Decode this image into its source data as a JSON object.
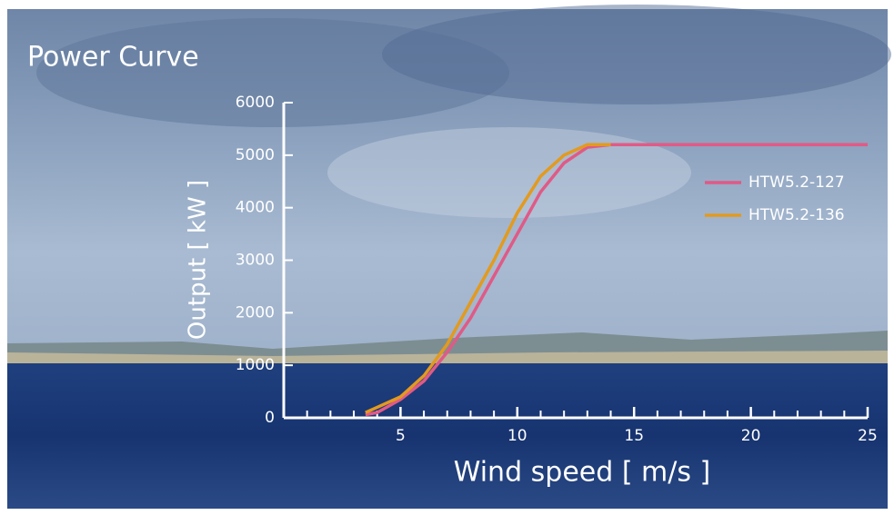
{
  "chart_data": {
    "type": "line",
    "title": "Power Curve",
    "x_label": "Wind speed  [ m/s ]",
    "y_label": "Output  [ kW ]",
    "x": [
      3.5,
      4,
      5,
      6,
      7,
      8,
      9,
      10,
      11,
      12,
      13,
      14,
      25
    ],
    "series": [
      {
        "name": "HTW5.2-127",
        "color": "#e05a86",
        "values": [
          60,
          100,
          350,
          700,
          1250,
          1900,
          2700,
          3500,
          4300,
          4850,
          5150,
          5200,
          5200
        ]
      },
      {
        "name": "HTW5.2-136",
        "color": "#e39a1e",
        "values": [
          100,
          200,
          400,
          800,
          1400,
          2200,
          3000,
          3900,
          4600,
          5000,
          5200,
          5200,
          null
        ]
      }
    ],
    "xlim": [
      0,
      25
    ],
    "xticks": [
      5,
      10,
      15,
      20,
      25
    ],
    "ylim": [
      0,
      6000
    ],
    "yticks": [
      0,
      1000,
      2000,
      3000,
      4000,
      5000,
      6000
    ],
    "grid": false,
    "legend": "right"
  }
}
